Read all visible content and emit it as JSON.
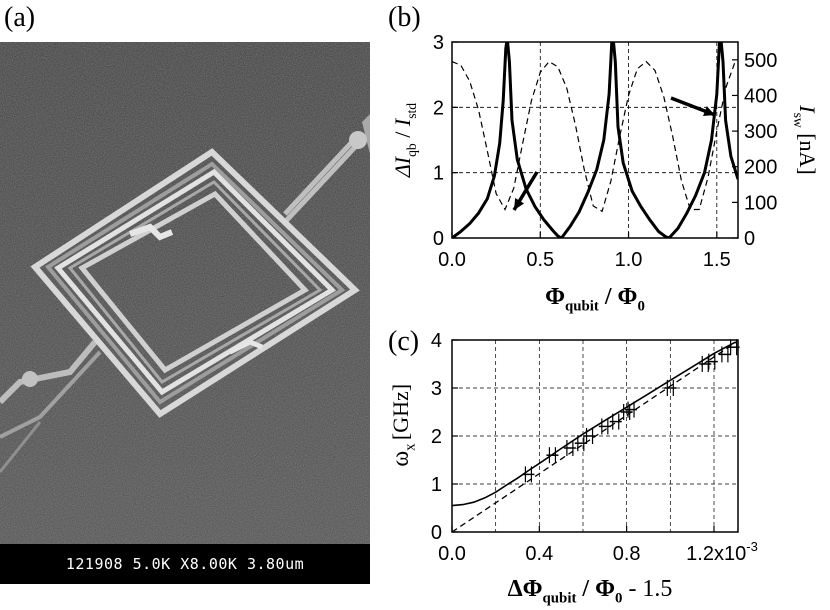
{
  "panels": {
    "a": "(a)",
    "b": "(b)",
    "c": "(c)"
  },
  "sem": {
    "caption": "121908 5.0K X8.00K 3.80um"
  },
  "chart_data": [
    {
      "panel": "(b)",
      "type": "line",
      "xlim": [
        0.0,
        1.62
      ],
      "ylim": [
        0,
        3
      ],
      "y2lim": [
        0,
        550
      ],
      "xticks": [
        "0.0",
        "0.5",
        "1.0",
        "1.5"
      ],
      "yticks": [
        "0",
        "1",
        "2",
        "3"
      ],
      "y2ticks": [
        "0",
        "100",
        "200",
        "300",
        "400",
        "500"
      ],
      "xlabel_main": "Φ",
      "xlabel_sub": "qubit",
      "xlabel_rest": " / Φ",
      "xlabel_sub2": "0",
      "ylabel_main": "ΔI",
      "ylabel_sub": "qb",
      "ylabel_rest": " / I",
      "ylabel_sub2": "std",
      "y2label_main": "I",
      "y2label_sub": "sw",
      "y2label_rest": " [nA]",
      "grid": true,
      "series": [
        {
          "style": "solid",
          "axis": "left",
          "x": [
            0.0,
            0.05,
            0.1,
            0.15,
            0.2,
            0.24,
            0.27,
            0.29,
            0.305,
            0.31,
            0.315,
            0.325,
            0.34,
            0.37,
            0.42,
            0.47,
            0.52,
            0.57,
            0.6,
            0.62,
            0.67,
            0.72,
            0.77,
            0.82,
            0.86,
            0.89,
            0.905,
            0.91,
            0.915,
            0.925,
            0.94,
            0.97,
            1.02,
            1.07,
            1.12,
            1.17,
            1.21,
            1.23,
            1.28,
            1.33,
            1.38,
            1.43,
            1.47,
            1.5,
            1.515,
            1.52,
            1.525,
            1.535,
            1.55,
            1.58,
            1.62
          ],
          "y": [
            0.0,
            0.1,
            0.22,
            0.38,
            0.6,
            0.95,
            1.45,
            2.1,
            2.9,
            3.0,
            3.0,
            2.7,
            1.8,
            1.2,
            0.75,
            0.48,
            0.28,
            0.12,
            0.03,
            0.0,
            0.18,
            0.4,
            0.7,
            1.05,
            1.5,
            2.2,
            3.0,
            3.0,
            3.0,
            2.7,
            1.7,
            1.15,
            0.72,
            0.48,
            0.28,
            0.1,
            0.02,
            0.0,
            0.15,
            0.38,
            0.65,
            1.0,
            1.5,
            2.2,
            3.0,
            3.0,
            3.0,
            2.7,
            1.8,
            1.25,
            0.9
          ]
        },
        {
          "style": "dashed",
          "axis": "right",
          "x": [
            0.0,
            0.05,
            0.1,
            0.15,
            0.2,
            0.25,
            0.3,
            0.35,
            0.4,
            0.45,
            0.5,
            0.55,
            0.6,
            0.65,
            0.7,
            0.75,
            0.8,
            0.85,
            0.9,
            0.95,
            1.0,
            1.05,
            1.1,
            1.15,
            1.2,
            1.25,
            1.3,
            1.35,
            1.4,
            1.45,
            1.5,
            1.55,
            1.6,
            1.62
          ],
          "y": [
            495,
            485,
            440,
            360,
            245,
            125,
            80,
            140,
            265,
            385,
            465,
            495,
            480,
            420,
            315,
            190,
            90,
            75,
            160,
            285,
            400,
            475,
            495,
            470,
            395,
            285,
            160,
            80,
            80,
            170,
            300,
            420,
            490,
            495
          ]
        }
      ],
      "annotations": [
        "arrow near (0.53, 0.25)",
        "arrow near (1.5, 2.0)"
      ]
    },
    {
      "panel": "(c)",
      "type": "line",
      "xlim": [
        0.0,
        0.00131
      ],
      "ylim": [
        0,
        4
      ],
      "xticks": [
        "0.0",
        "0.4",
        "0.8",
        "1.2x10"
      ],
      "xtick_exp": "-3",
      "yticks": [
        "0",
        "1",
        "2",
        "3",
        "4"
      ],
      "xlabel_main": "ΔΦ",
      "xlabel_sub": "qubit",
      "xlabel_rest": " / Φ",
      "xlabel_sub2": "0",
      "xlabel_tail": " - 1.5",
      "ylabel_main": "ω",
      "ylabel_sub": "x",
      "ylabel_rest": "[GHz]",
      "grid": true,
      "series": [
        {
          "style": "solid",
          "x": [
            0.0,
            5e-05,
            0.0001,
            0.00015,
            0.0002,
            0.00025,
            0.0003,
            0.00035,
            0.0004,
            0.0005,
            0.0006,
            0.0007,
            0.0008,
            0.0009,
            0.001,
            0.0011,
            0.0012,
            0.0013
          ],
          "y": [
            0.55,
            0.57,
            0.62,
            0.71,
            0.83,
            0.98,
            1.12,
            1.28,
            1.43,
            1.74,
            2.04,
            2.32,
            2.6,
            2.88,
            3.16,
            3.44,
            3.72,
            3.96
          ]
        },
        {
          "style": "dashed",
          "x": [
            0.0,
            0.00013
          ],
          "y": [
            0.0,
            3.95
          ],
          "dense": true
        },
        {
          "style": "markers",
          "x": [
            0.00035,
            0.00046,
            0.00054,
            0.00059,
            0.00063,
            0.0007,
            0.00075,
            0.0008,
            0.00082,
            0.001,
            0.00116,
            0.00119,
            0.00125,
            0.00129
          ],
          "y": [
            1.2,
            1.6,
            1.75,
            1.85,
            2.0,
            2.2,
            2.3,
            2.5,
            2.55,
            3.0,
            3.5,
            3.55,
            3.7,
            3.85
          ]
        }
      ]
    }
  ]
}
